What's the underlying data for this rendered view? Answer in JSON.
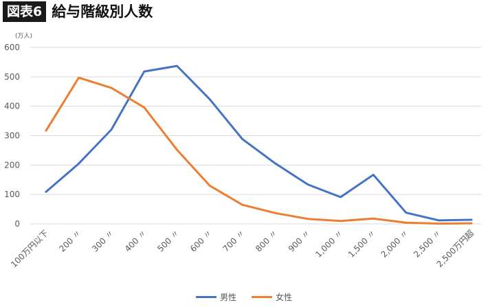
{
  "header": {
    "badge": "図表6",
    "title": "給与階級別人数"
  },
  "chart_data": {
    "type": "line",
    "unit_label": "(万人)",
    "categories": [
      "100万円以下",
      "200 〃",
      "300 〃",
      "400 〃",
      "500 〃",
      "600 〃",
      "700 〃",
      "800 〃",
      "900 〃",
      "1,000 〃",
      "1,500 〃",
      "2,000 〃",
      "2,500 〃",
      "2,500万円超"
    ],
    "ylim": [
      0,
      600
    ],
    "yticks": [
      0,
      100,
      200,
      300,
      400,
      500,
      600
    ],
    "grid": true,
    "legend_position": "bottom",
    "series": [
      {
        "name": "男性",
        "color": "#4472C4",
        "values": [
          109,
          205,
          321,
          518,
          537,
          424,
          288,
          206,
          134,
          91,
          167,
          38,
          12,
          14
        ]
      },
      {
        "name": "女性",
        "color": "#ED7D31",
        "values": [
          317,
          497,
          462,
          396,
          252,
          130,
          65,
          37,
          17,
          10,
          18,
          4,
          1,
          2
        ]
      }
    ]
  }
}
